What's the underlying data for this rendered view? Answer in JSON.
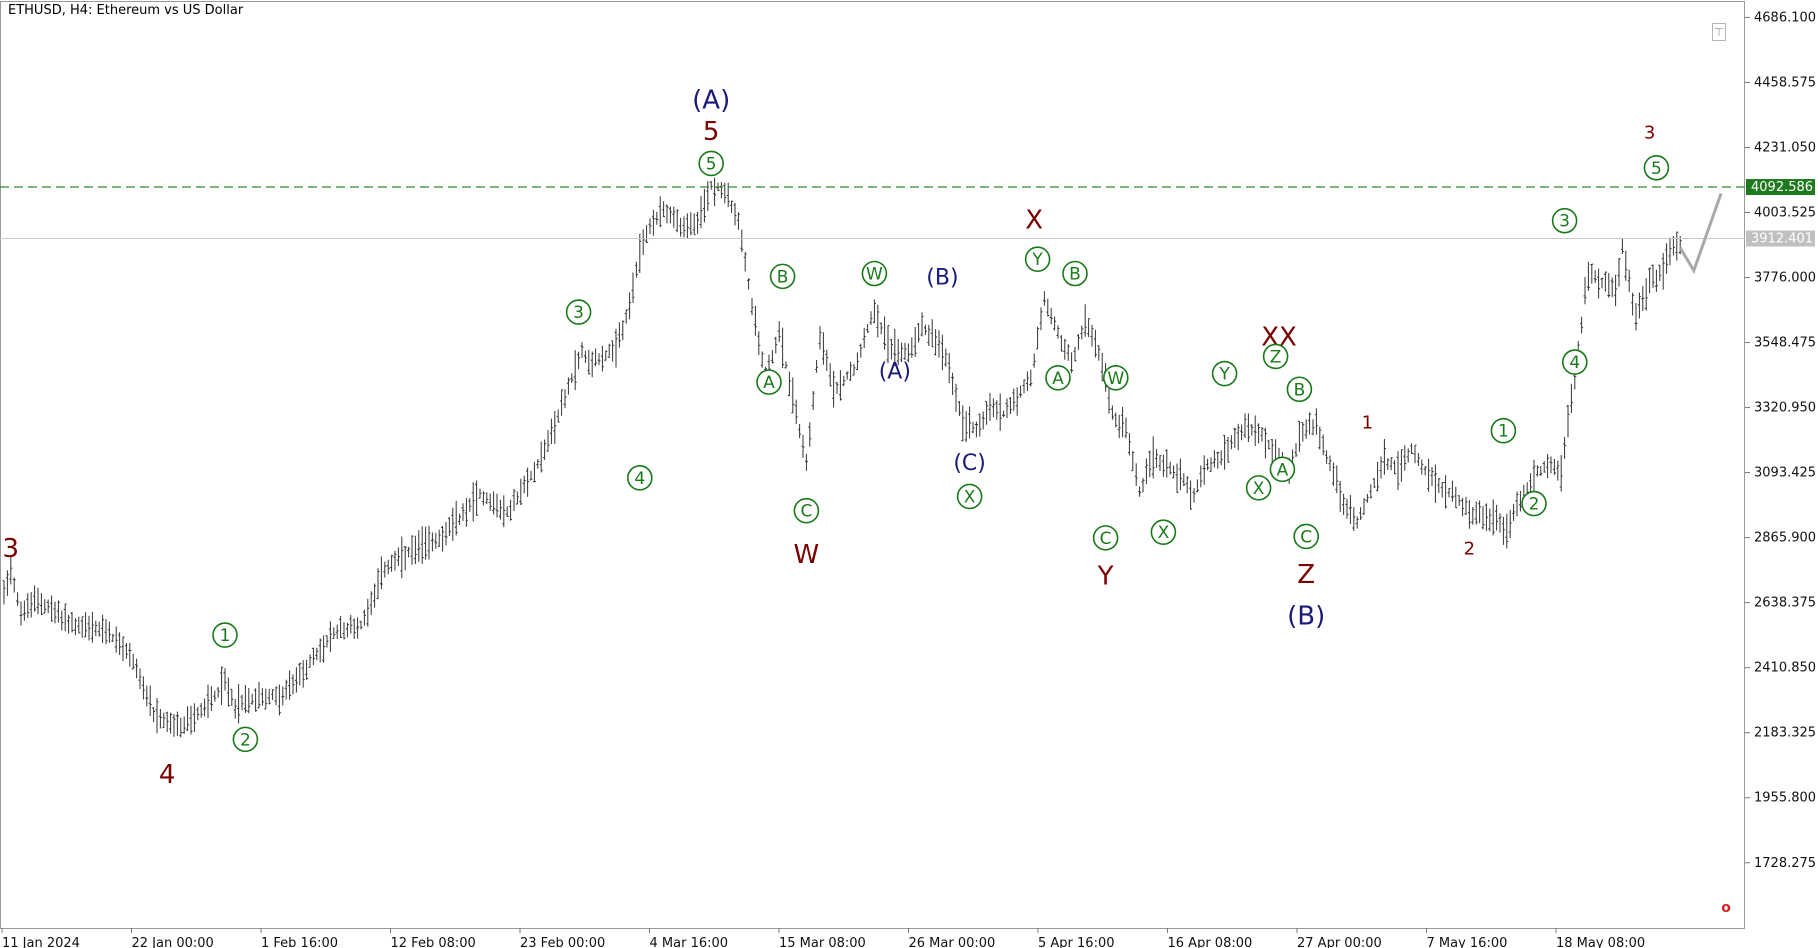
{
  "header": {
    "title": "ETHUSD, H4:  Ethereum vs US Dollar"
  },
  "colors": {
    "price_bars": "#333333",
    "green_label": "#1a7a1a",
    "maroon_label": "#7a0000",
    "navy_label": "#1a1a7a",
    "target_line": "#2e8b2e",
    "current_line": "#c8c8c8",
    "projection": "#a9a9a9",
    "target_badge_bg": "#1f7a1f"
  },
  "chart_data": {
    "type": "ohlc",
    "symbol": "ETHUSD",
    "timeframe": "H4",
    "ylim": [
      1500.0,
      4740.0
    ],
    "y_ticks": [
      "4686.100",
      "4458.575",
      "4231.050",
      "4003.525",
      "3776.000",
      "3548.475",
      "3320.950",
      "3093.425",
      "2865.900",
      "2638.375",
      "2410.850",
      "2183.325",
      "1955.800",
      "1728.275"
    ],
    "x_ticks": [
      "11 Jan 2024",
      "22 Jan 00:00",
      "1 Feb 16:00",
      "12 Feb 08:00",
      "23 Feb 00:00",
      "4 Mar 16:00",
      "15 Mar 08:00",
      "26 Mar 00:00",
      "5 Apr 16:00",
      "16 Apr 08:00",
      "27 Apr 00:00",
      "7 May 16:00",
      "18 May 08:00"
    ],
    "price_path": [
      [
        0,
        2680
      ],
      [
        2,
        2760
      ],
      [
        5,
        2600
      ],
      [
        10,
        2650
      ],
      [
        20,
        2560
      ],
      [
        30,
        2540
      ],
      [
        38,
        2440
      ],
      [
        44,
        2240
      ],
      [
        52,
        2200
      ],
      [
        58,
        2260
      ],
      [
        65,
        2360
      ],
      [
        68,
        2280
      ],
      [
        75,
        2310
      ],
      [
        82,
        2310
      ],
      [
        88,
        2400
      ],
      [
        98,
        2540
      ],
      [
        105,
        2560
      ],
      [
        112,
        2760
      ],
      [
        122,
        2830
      ],
      [
        130,
        2880
      ],
      [
        140,
        3020
      ],
      [
        148,
        2950
      ],
      [
        155,
        3080
      ],
      [
        160,
        3200
      ],
      [
        166,
        3390
      ],
      [
        170,
        3520
      ],
      [
        172,
        3480
      ],
      [
        180,
        3520
      ],
      [
        184,
        3680
      ],
      [
        188,
        3910
      ],
      [
        194,
        4020
      ],
      [
        200,
        3950
      ],
      [
        204,
        3960
      ],
      [
        208,
        4100
      ],
      [
        212,
        4080
      ],
      [
        216,
        3970
      ],
      [
        220,
        3680
      ],
      [
        224,
        3430
      ],
      [
        228,
        3580
      ],
      [
        232,
        3360
      ],
      [
        236,
        3130
      ],
      [
        240,
        3580
      ],
      [
        244,
        3380
      ],
      [
        250,
        3460
      ],
      [
        256,
        3670
      ],
      [
        260,
        3540
      ],
      [
        266,
        3510
      ],
      [
        270,
        3610
      ],
      [
        274,
        3560
      ],
      [
        278,
        3460
      ],
      [
        282,
        3270
      ],
      [
        286,
        3250
      ],
      [
        290,
        3320
      ],
      [
        294,
        3300
      ],
      [
        298,
        3360
      ],
      [
        302,
        3420
      ],
      [
        306,
        3700
      ],
      [
        310,
        3580
      ],
      [
        314,
        3480
      ],
      [
        318,
        3620
      ],
      [
        322,
        3520
      ],
      [
        326,
        3300
      ],
      [
        330,
        3240
      ],
      [
        334,
        3020
      ],
      [
        338,
        3150
      ],
      [
        342,
        3120
      ],
      [
        346,
        3080
      ],
      [
        350,
        3020
      ],
      [
        354,
        3120
      ],
      [
        358,
        3150
      ],
      [
        362,
        3220
      ],
      [
        366,
        3250
      ],
      [
        370,
        3230
      ],
      [
        374,
        3150
      ],
      [
        378,
        3100
      ],
      [
        382,
        3240
      ],
      [
        386,
        3260
      ],
      [
        390,
        3120
      ],
      [
        394,
        2980
      ],
      [
        398,
        2920
      ],
      [
        402,
        3030
      ],
      [
        406,
        3140
      ],
      [
        410,
        3100
      ],
      [
        414,
        3180
      ],
      [
        418,
        3100
      ],
      [
        422,
        3040
      ],
      [
        426,
        3020
      ],
      [
        432,
        2950
      ],
      [
        438,
        2930
      ],
      [
        442,
        2900
      ],
      [
        446,
        3000
      ],
      [
        450,
        3080
      ],
      [
        454,
        3130
      ],
      [
        458,
        3090
      ],
      [
        462,
        3440
      ],
      [
        466,
        3800
      ],
      [
        470,
        3760
      ],
      [
        474,
        3730
      ],
      [
        476,
        3880
      ],
      [
        478,
        3750
      ],
      [
        480,
        3640
      ],
      [
        484,
        3760
      ],
      [
        488,
        3800
      ],
      [
        491,
        3900
      ],
      [
        493,
        3880
      ]
    ],
    "projection": [
      [
        493,
        3880
      ],
      [
        497,
        3800
      ],
      [
        505,
        4070
      ]
    ],
    "levels": [
      {
        "name": "target",
        "value": 4092.586,
        "label": "4092.586",
        "style": "dashed"
      },
      {
        "name": "current",
        "value": 3912.401,
        "label": "3912.401",
        "style": "solid"
      }
    ],
    "wave_labels": [
      {
        "text": "3",
        "x": 2,
        "y": 2830,
        "color": "maroon",
        "circled": false,
        "size": "large"
      },
      {
        "text": "4",
        "x": 48,
        "y": 2040,
        "color": "maroon",
        "circled": false,
        "size": "large"
      },
      {
        "text": "1",
        "x": 65,
        "y": 2525,
        "color": "green",
        "circled": true
      },
      {
        "text": "2",
        "x": 71,
        "y": 2160,
        "color": "green",
        "circled": true
      },
      {
        "text": "3",
        "x": 169,
        "y": 3655,
        "color": "green",
        "circled": true
      },
      {
        "text": "4",
        "x": 187,
        "y": 3075,
        "color": "green",
        "circled": true
      },
      {
        "text": "5",
        "x": 208,
        "y": 4175,
        "color": "green",
        "circled": true
      },
      {
        "text": "5",
        "x": 208,
        "y": 4290,
        "color": "maroon",
        "circled": false,
        "size": "large"
      },
      {
        "text": "(A)",
        "x": 208,
        "y": 4400,
        "color": "navy",
        "circled": false,
        "size": "large"
      },
      {
        "text": "B",
        "x": 229,
        "y": 3780,
        "color": "green",
        "circled": true
      },
      {
        "text": "A",
        "x": 225,
        "y": 3410,
        "color": "green",
        "circled": true
      },
      {
        "text": "C",
        "x": 236,
        "y": 2960,
        "color": "green",
        "circled": true
      },
      {
        "text": "W",
        "x": 236,
        "y": 2810,
        "color": "maroon",
        "circled": false,
        "size": "large"
      },
      {
        "text": "W",
        "x": 256,
        "y": 3790,
        "color": "green",
        "circled": true
      },
      {
        "text": "(A)",
        "x": 262,
        "y": 3450,
        "color": "navy",
        "circled": false
      },
      {
        "text": "(B)",
        "x": 276,
        "y": 3780,
        "color": "navy",
        "circled": false
      },
      {
        "text": "(C)",
        "x": 284,
        "y": 3130,
        "color": "navy",
        "circled": false
      },
      {
        "text": "X",
        "x": 284,
        "y": 3010,
        "color": "green",
        "circled": true
      },
      {
        "text": "X",
        "x": 303,
        "y": 3980,
        "color": "maroon",
        "circled": false,
        "size": "large"
      },
      {
        "text": "Y",
        "x": 304,
        "y": 3840,
        "color": "green",
        "circled": true
      },
      {
        "text": "B",
        "x": 315,
        "y": 3790,
        "color": "green",
        "circled": true
      },
      {
        "text": "A",
        "x": 310,
        "y": 3425,
        "color": "green",
        "circled": true
      },
      {
        "text": "W",
        "x": 327,
        "y": 3425,
        "color": "green",
        "circled": true
      },
      {
        "text": "C",
        "x": 324,
        "y": 2865,
        "color": "green",
        "circled": true
      },
      {
        "text": "Y",
        "x": 324,
        "y": 2735,
        "color": "maroon",
        "circled": false,
        "size": "large"
      },
      {
        "text": "X",
        "x": 341,
        "y": 2885,
        "color": "green",
        "circled": true
      },
      {
        "text": "Y",
        "x": 359,
        "y": 3440,
        "color": "green",
        "circled": true
      },
      {
        "text": "XX",
        "x": 375,
        "y": 3570,
        "color": "maroon",
        "circled": false,
        "size": "large"
      },
      {
        "text": "Z",
        "x": 374,
        "y": 3500,
        "color": "green",
        "circled": true
      },
      {
        "text": "B",
        "x": 381,
        "y": 3385,
        "color": "green",
        "circled": true
      },
      {
        "text": "A",
        "x": 376,
        "y": 3105,
        "color": "green",
        "circled": true
      },
      {
        "text": "X",
        "x": 369,
        "y": 3040,
        "color": "green",
        "circled": true
      },
      {
        "text": "C",
        "x": 383,
        "y": 2870,
        "color": "green",
        "circled": true
      },
      {
        "text": "Z",
        "x": 383,
        "y": 2740,
        "color": "maroon",
        "circled": false,
        "size": "large"
      },
      {
        "text": "(B)",
        "x": 383,
        "y": 2595,
        "color": "navy",
        "circled": false,
        "size": "large"
      },
      {
        "text": "1",
        "x": 401,
        "y": 3270,
        "color": "maroon",
        "circled": false,
        "size": "small"
      },
      {
        "text": "2",
        "x": 431,
        "y": 2830,
        "color": "maroon",
        "circled": false,
        "size": "small"
      },
      {
        "text": "1",
        "x": 441,
        "y": 3240,
        "color": "green",
        "circled": true
      },
      {
        "text": "2",
        "x": 450,
        "y": 2985,
        "color": "green",
        "circled": true
      },
      {
        "text": "3",
        "x": 459,
        "y": 3975,
        "color": "green",
        "circled": true
      },
      {
        "text": "4",
        "x": 462,
        "y": 3480,
        "color": "green",
        "circled": true
      },
      {
        "text": "5",
        "x": 486,
        "y": 4160,
        "color": "green",
        "circled": true
      },
      {
        "text": "3",
        "x": 484,
        "y": 4285,
        "color": "maroon",
        "circled": false,
        "size": "small"
      }
    ]
  }
}
